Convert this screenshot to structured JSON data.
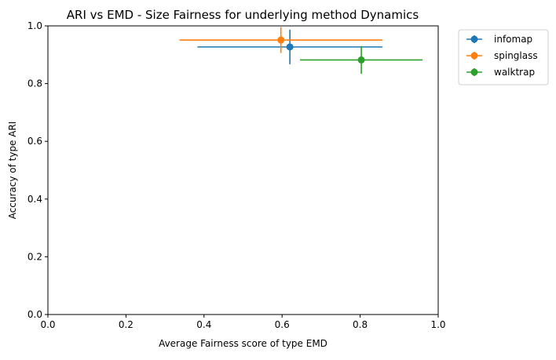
{
  "chart_data": {
    "type": "scatter",
    "title": "ARI vs EMD - Size Fairness for underlying method Dynamics",
    "xlabel": "Average Fairness score of type EMD",
    "ylabel": "Accuracy of type ARI",
    "xlim": [
      0.0,
      1.0
    ],
    "ylim": [
      0.0,
      1.0
    ],
    "xticks": [
      "0.0",
      "0.2",
      "0.4",
      "0.6",
      "0.8",
      "1.0"
    ],
    "yticks": [
      "0.0",
      "0.2",
      "0.4",
      "0.6",
      "0.8",
      "1.0"
    ],
    "grid": false,
    "legend_position": "outside-top-right",
    "error_bars": true,
    "series": [
      {
        "name": "infomap",
        "color": "#1f77b4",
        "x": 0.62,
        "y": 0.927,
        "x_err": 0.237,
        "y_err": 0.06
      },
      {
        "name": "spinglass",
        "color": "#ff7f0e",
        "x": 0.597,
        "y": 0.951,
        "x_err": 0.26,
        "y_err": 0.045
      },
      {
        "name": "walktrap",
        "color": "#2ca02c",
        "x": 0.803,
        "y": 0.882,
        "x_err": 0.157,
        "y_err": 0.048
      }
    ]
  }
}
